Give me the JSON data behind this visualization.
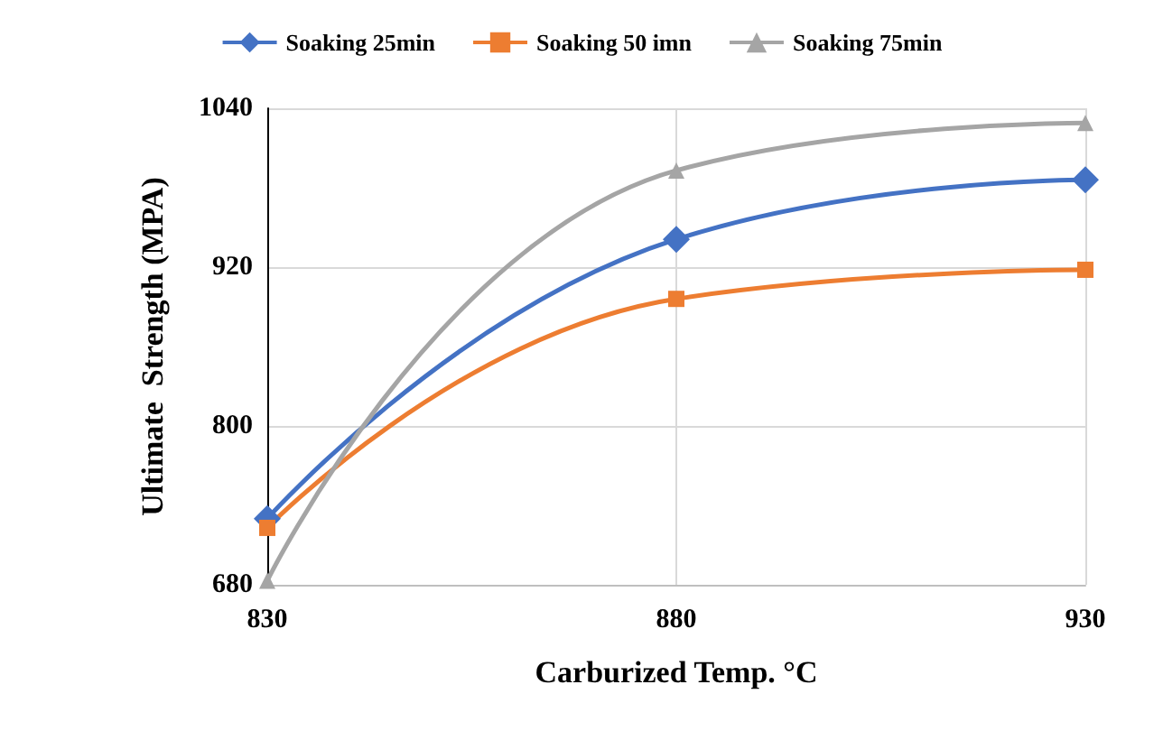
{
  "chart_data": {
    "type": "line",
    "xlabel": "Carburized Temp. °C",
    "ylabel": "Ultimate  Strength (MPA)",
    "x": [
      830,
      880,
      930
    ],
    "xlim": [
      830,
      930
    ],
    "xticks": [
      830,
      880,
      930
    ],
    "ylim": [
      680,
      1040
    ],
    "yticks": [
      680,
      800,
      920,
      1040
    ],
    "grid": true,
    "legend": "top",
    "line_style": "solid",
    "series": [
      {
        "name": "Soaking 25min",
        "color": "#4472c4",
        "marker": "diamond",
        "values": [
          730,
          941,
          986
        ]
      },
      {
        "name": "Soaking 50 imn",
        "color": "#ed7d31",
        "marker": "square",
        "values": [
          723,
          896,
          918
        ]
      },
      {
        "name": "Soaking 75min",
        "color": "#a5a5a5",
        "marker": "triangle",
        "values": [
          683,
          993,
          1029
        ]
      }
    ]
  }
}
